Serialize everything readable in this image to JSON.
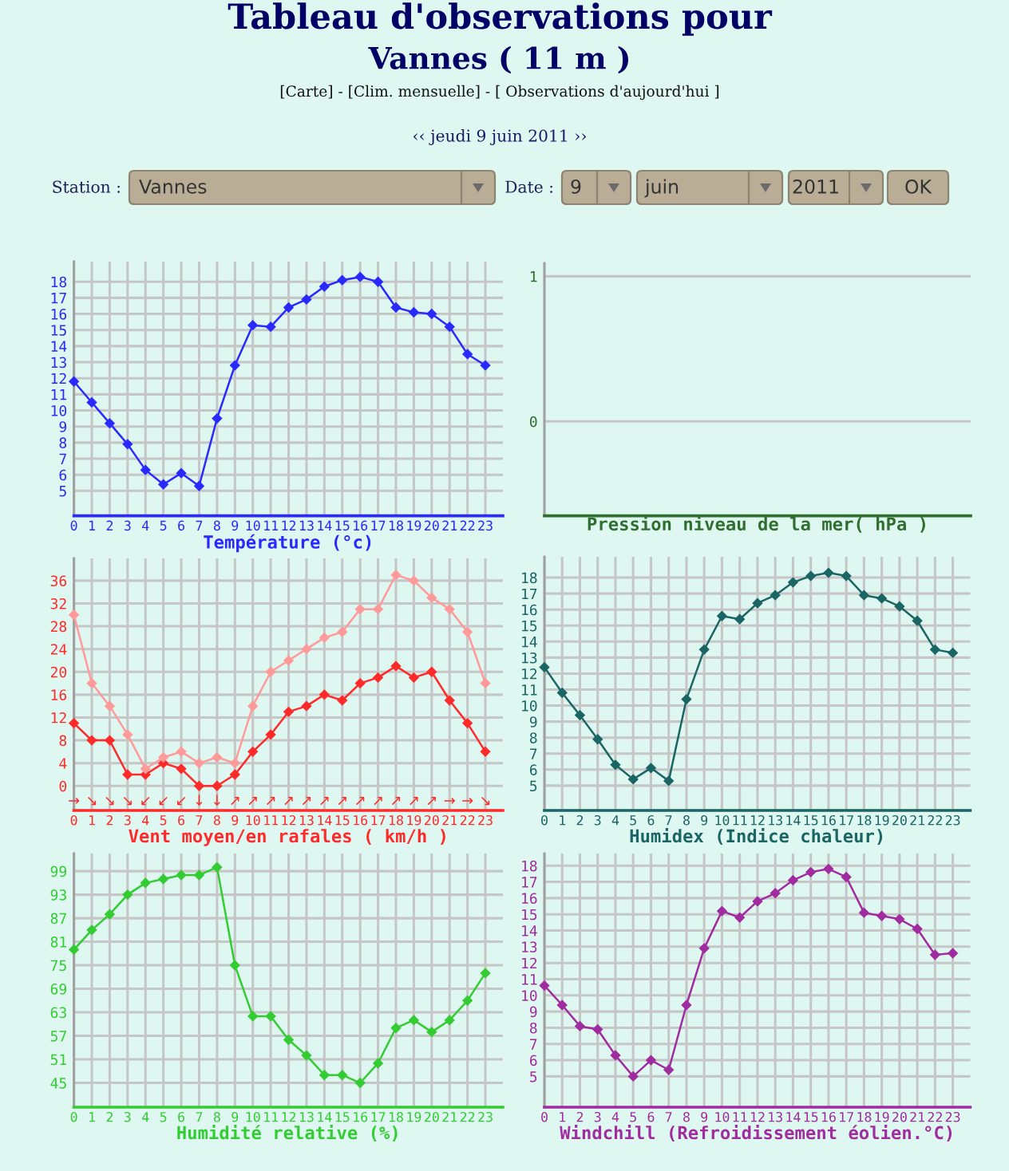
{
  "chart_data": [
    {
      "type": "other",
      "title": "Tableau d'observations pour",
      "subtitle": "Vannes ( 11 m )",
      "annotations": [
        "[Carte] - [Clim. mensuelle] - [ Observations d'aujourd'hui ]",
        "‹‹ jeudi 9 juin 2011 ››",
        "Station :",
        "Vannes",
        "Date :",
        "9",
        "juin",
        "2011",
        "OK"
      ]
    },
    {
      "type": "line",
      "xlabel": "Température (°c)",
      "categories": [
        "0",
        "1",
        "2",
        "3",
        "4",
        "5",
        "6",
        "7",
        "8",
        "9",
        "10",
        "11",
        "12",
        "13",
        "14",
        "15",
        "16",
        "17",
        "18",
        "19",
        "20",
        "21",
        "22",
        "23"
      ],
      "series": [
        {
          "color": "#2a2aff",
          "values": [
            11.8,
            10.5,
            9.2,
            7.9,
            6.3,
            5.4,
            6.1,
            5.3,
            9.5,
            12.8,
            15.3,
            15.2,
            16.4,
            16.9,
            17.7,
            18.1,
            18.3,
            18.0,
            16.4,
            16.1,
            16.0,
            15.2,
            13.5,
            12.8
          ]
        }
      ],
      "ylim": [
        3.45,
        19.25
      ],
      "yticks": [
        5,
        6,
        7,
        8,
        9,
        10,
        11,
        12,
        13,
        14,
        15,
        16,
        17,
        18
      ],
      "grid": true,
      "marker": "diamond"
    },
    {
      "type": "line",
      "xlabel": "Pression niveau de la mer( hPa )",
      "categories": [
        null,
        null,
        null,
        null,
        null,
        null,
        null,
        null,
        null,
        null,
        null,
        null,
        null,
        null,
        null,
        null,
        null,
        null,
        null,
        null,
        null,
        null,
        null,
        null
      ],
      "series": [
        {
          "color": "#2e6e2e",
          "values": [
            null,
            null,
            null,
            null,
            null,
            null,
            null,
            null,
            null,
            null,
            null,
            null,
            null,
            null,
            null,
            null,
            null,
            null,
            null,
            null,
            null,
            null,
            null,
            null
          ]
        }
      ],
      "ylim": [
        -0.65,
        1.09
      ],
      "yticks": [
        0,
        1
      ],
      "grid": "y",
      "tick_labels": "y"
    },
    {
      "type": "line",
      "xlabel": "Vent moyen/en rafales ( km/h )",
      "categories": [
        "0",
        "1",
        "2",
        "3",
        "4",
        "5",
        "6",
        "7",
        "8",
        "9",
        "10",
        "11",
        "12",
        "13",
        "14",
        "15",
        "16",
        "17",
        "18",
        "19",
        "20",
        "21",
        "22",
        "23"
      ],
      "series": [
        {
          "color": "#ff2a2a",
          "values": [
            11,
            8,
            8,
            2,
            2,
            4,
            3,
            0,
            0,
            2,
            6,
            9,
            13,
            14,
            16,
            15,
            18,
            19,
            21,
            19,
            20,
            15,
            11,
            6
          ]
        },
        {
          "color": "#ff9a9a",
          "values": [
            30,
            18,
            14,
            9,
            3,
            5,
            6,
            4,
            5,
            4,
            14,
            20,
            22,
            24,
            26,
            27,
            31,
            31,
            37,
            36,
            33,
            31,
            27,
            18
          ]
        }
      ],
      "ylim": [
        -4.3,
        39.9
      ],
      "yticks": [
        0,
        4,
        8,
        12,
        16,
        20,
        24,
        28,
        32,
        36
      ],
      "grid": true,
      "marker": "diamond",
      "annotations": [
        "→",
        "↘",
        "↘",
        "↘",
        "↙",
        "↙",
        "↙",
        "↓",
        "↓",
        "↗",
        "↗",
        "↗",
        "↗",
        "↗",
        "↗",
        "↗",
        "↗",
        "↗",
        "↗",
        "↗",
        "↗",
        "→",
        "→",
        "↘"
      ]
    },
    {
      "type": "line",
      "xlabel": "Humidex (Indice chaleur)",
      "categories": [
        "0",
        "1",
        "2",
        "3",
        "4",
        "5",
        "6",
        "7",
        "8",
        "9",
        "10",
        "11",
        "12",
        "13",
        "14",
        "15",
        "16",
        "17",
        "18",
        "19",
        "20",
        "21",
        "22",
        "23"
      ],
      "series": [
        {
          "color": "#1b6565",
          "values": [
            12.4,
            10.8,
            9.4,
            7.9,
            6.3,
            5.4,
            6.1,
            5.3,
            10.4,
            13.5,
            15.6,
            15.4,
            16.4,
            16.9,
            17.7,
            18.1,
            18.3,
            18.1,
            16.9,
            16.7,
            16.2,
            15.3,
            13.5,
            13.3
          ]
        }
      ],
      "ylim": [
        3.45,
        19.3
      ],
      "yticks": [
        5,
        6,
        7,
        8,
        9,
        10,
        11,
        12,
        13,
        14,
        15,
        16,
        17,
        18
      ],
      "grid": true,
      "marker": "diamond"
    },
    {
      "type": "line",
      "xlabel": "Humidité relative (%)",
      "categories": [
        "0",
        "1",
        "2",
        "3",
        "4",
        "5",
        "6",
        "7",
        "8",
        "9",
        "10",
        "11",
        "12",
        "13",
        "14",
        "15",
        "16",
        "17",
        "18",
        "19",
        "20",
        "21",
        "22",
        "23"
      ],
      "series": [
        {
          "color": "#33cc33",
          "values": [
            79,
            84,
            88,
            93,
            96,
            97,
            98,
            98,
            100,
            75,
            62,
            62,
            56,
            52,
            47,
            47,
            45,
            50,
            59,
            61,
            58,
            61,
            66,
            73
          ]
        }
      ],
      "ylim": [
        38.8,
        103.5
      ],
      "yticks": [
        45,
        51,
        57,
        63,
        69,
        75,
        81,
        87,
        93,
        99
      ],
      "grid": true,
      "marker": "diamond"
    },
    {
      "type": "line",
      "xlabel": "Windchill (Refroidissement éolien.°C)",
      "categories": [
        "0",
        "1",
        "2",
        "3",
        "4",
        "5",
        "6",
        "7",
        "8",
        "9",
        "10",
        "11",
        "12",
        "13",
        "14",
        "15",
        "16",
        "17",
        "18",
        "19",
        "20",
        "21",
        "22",
        "23"
      ],
      "series": [
        {
          "color": "#a02ca0",
          "values": [
            10.6,
            9.4,
            8.1,
            7.9,
            6.3,
            5.0,
            6.0,
            5.4,
            9.4,
            12.9,
            15.2,
            14.8,
            15.8,
            16.3,
            17.1,
            17.6,
            17.8,
            17.3,
            15.1,
            14.9,
            14.7,
            14.1,
            12.5,
            12.6
          ]
        }
      ],
      "ylim": [
        3.1,
        18.75
      ],
      "yticks": [
        5,
        6,
        7,
        8,
        9,
        10,
        11,
        12,
        13,
        14,
        15,
        16,
        17,
        18
      ],
      "grid": true,
      "marker": "diamond"
    }
  ]
}
